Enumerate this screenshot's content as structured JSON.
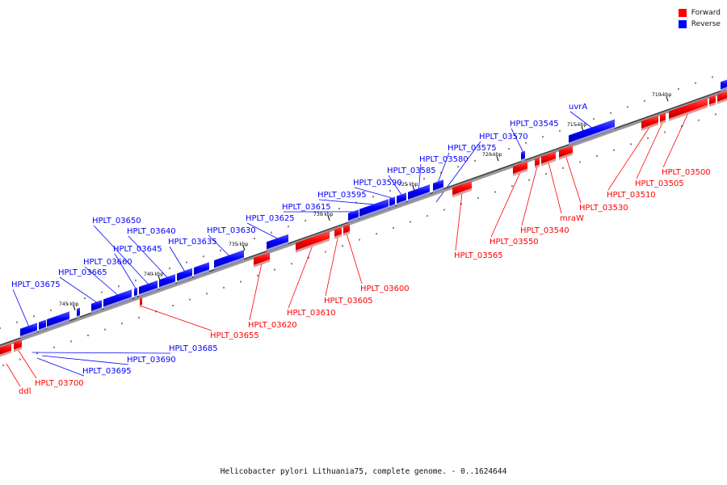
{
  "colors": {
    "forward": "#ff0000",
    "reverse": "#0000ff",
    "axis": "#555555"
  },
  "legend": [
    {
      "label": "Forward",
      "color": "#ff0000"
    },
    {
      "label": "Reverse",
      "color": "#0000ff"
    }
  ],
  "caption": "Helicobacter pylori Lithuania75, complete genome. - 0..1624644",
  "ticks": [
    "745 kbp",
    "740 kbp",
    "735 kbp",
    "730 kbp",
    "725 kbp",
    "720 kbp",
    "715 kbp",
    "710 kbp"
  ],
  "reverse_genes": [
    "HPLT_03675",
    "HPLT_03665",
    "HPLT_03660",
    "HPLT_03650",
    "HPLT_03645",
    "HPLT_03640",
    "HPLT_03635",
    "HPLT_03630",
    "HPLT_03625",
    "HPLT_03615",
    "HPLT_03595",
    "HPLT_03590",
    "HPLT_03585",
    "HPLT_03580",
    "HPLT_03575",
    "HPLT_03570",
    "HPLT_03545",
    "uvrA",
    "HPLT_03685",
    "HPLT_03690",
    "HPLT_03695"
  ],
  "forward_genes": [
    "HPLT_03500",
    "HPLT_03505",
    "HPLT_03510",
    "HPLT_03530",
    "mraW",
    "HPLT_03540",
    "HPLT_03550",
    "HPLT_03565",
    "HPLT_03600",
    "HPLT_03605",
    "HPLT_03610",
    "HPLT_03620",
    "HPLT_03655",
    "HPLT_03700",
    "ddl"
  ]
}
